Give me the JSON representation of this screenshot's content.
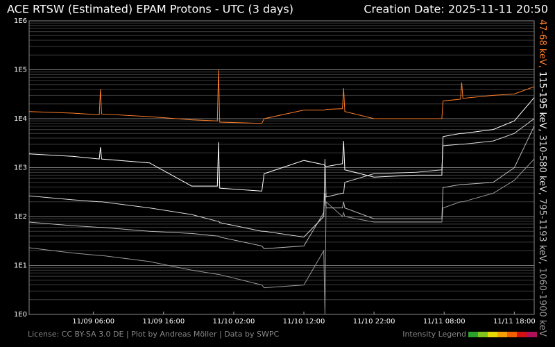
{
  "chart_data": {
    "type": "line",
    "title": "ACE RTSW (Estimated) EPAM Protons - UTC (3 days)",
    "subtitle": "Creation Date: 2025-11-11 20:50",
    "footer": "License: CC BY-SA 3.0 DE | Plot by Andreas Möller | Data by SWPC",
    "legend_title": "Intensity Legend",
    "log_scale": true,
    "grid": true,
    "x": [
      "11/08 20:50",
      "11/09 03:00",
      "11/09 06:50",
      "11/09 07:00",
      "11/09 07:10",
      "11/09 14:00",
      "11/09 20:00",
      "11/09 23:40",
      "11/09 23:50",
      "11/10 00:00",
      "11/10 06:00",
      "11/10 06:20",
      "11/10 12:00",
      "11/10 14:50",
      "11/10 15:00",
      "11/10 15:10",
      "11/10 17:30",
      "11/10 17:40",
      "11/10 17:50",
      "11/10 22:00",
      "11/11 04:00",
      "11/11 07:40",
      "11/11 07:50",
      "11/11 10:20",
      "11/11 10:30",
      "11/11 10:40",
      "11/11 15:00",
      "11/11 18:00",
      "11/11 20:50"
    ],
    "xlim": [
      "11/08 20:50",
      "11/11 20:50"
    ],
    "xticks": [
      "11/09 06:00",
      "11/09 16:00",
      "11/10 02:00",
      "11/10 12:00",
      "11/10 22:00",
      "11/11 08:00",
      "11/11 18:00"
    ],
    "ylim": [
      1,
      1000000
    ],
    "yticks": [
      {
        "value": 1,
        "label": "1E0"
      },
      {
        "value": 10,
        "label": "1E1"
      },
      {
        "value": 100,
        "label": "1E2"
      },
      {
        "value": 1000,
        "label": "1E3"
      },
      {
        "value": 10000,
        "label": "1E4"
      },
      {
        "value": 100000,
        "label": "1E5"
      },
      {
        "value": 1000000,
        "label": "1E6"
      }
    ],
    "series": [
      {
        "name": "47-68 keV,",
        "color": "#ff7f2a",
        "values": [
          14000,
          13000,
          12000,
          40000,
          12500,
          11000,
          9500,
          9000,
          100000,
          8500,
          8000,
          10000,
          15000,
          15000,
          15000,
          15500,
          16000,
          42000,
          14000,
          10000,
          10000,
          10000,
          23000,
          25000,
          55000,
          26000,
          30000,
          32000,
          45000
        ]
      },
      {
        "name": "115-195 keV,",
        "color": "#ffffff",
        "values": [
          1900,
          1700,
          1500,
          2600,
          1500,
          1250,
          420,
          420,
          3300,
          380,
          330,
          750,
          1400,
          1150,
          1100,
          1050,
          1200,
          3500,
          900,
          640,
          700,
          700,
          4300,
          5000,
          5000,
          5000,
          6000,
          9000,
          27000
        ]
      },
      {
        "name": "310-580 keV,",
        "color": "#dddddd",
        "values": [
          265,
          220,
          200,
          200,
          200,
          150,
          110,
          80,
          80,
          75,
          50,
          50,
          38,
          100,
          1500,
          250,
          300,
          300,
          500,
          750,
          800,
          900,
          2800,
          3000,
          3000,
          3000,
          3500,
          5000,
          10000
        ]
      },
      {
        "name": "795-1193 keV,",
        "color": "#bbbbbb",
        "values": [
          77,
          65,
          60,
          60,
          60,
          50,
          45,
          40,
          40,
          38,
          25,
          22,
          25,
          120,
          300,
          150,
          150,
          200,
          150,
          90,
          90,
          90,
          390,
          450,
          450,
          450,
          500,
          1000,
          7000
        ]
      },
      {
        "name": "1060-1900 keV",
        "color": "#999999",
        "values": [
          23,
          18,
          16,
          16,
          16,
          12,
          8,
          6.6,
          6.6,
          6.5,
          4,
          3.5,
          4,
          20,
          1,
          200,
          100,
          120,
          100,
          77,
          77,
          77,
          150,
          200,
          200,
          200,
          300,
          550,
          1500
        ]
      }
    ]
  }
}
